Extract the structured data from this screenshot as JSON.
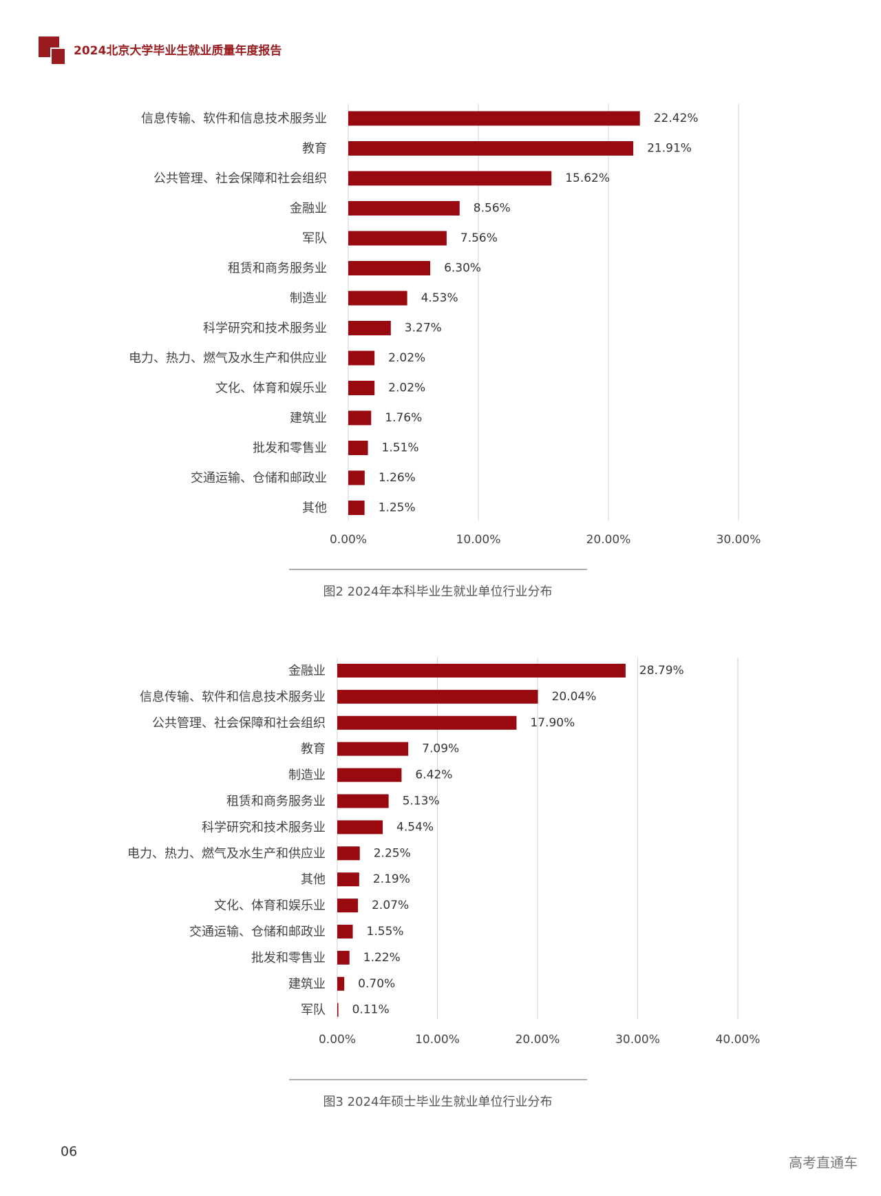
{
  "header": {
    "title": "2024北京大学毕业生就业质量年度报告"
  },
  "page_number": "06",
  "watermark": "高考直通车",
  "chart_data": [
    {
      "type": "bar",
      "orientation": "horizontal",
      "color": "#990a10",
      "grid": true,
      "caption": "图2 2024年本科毕业生就业单位行业分布",
      "categories": [
        "信息传输、软件和信息技术服务业",
        "教育",
        "公共管理、社会保障和社会组织",
        "金融业",
        "军队",
        "租赁和商务服务业",
        "制造业",
        "科学研究和技术服务业",
        "电力、热力、燃气及水生产和供应业",
        "文化、体育和娱乐业",
        "建筑业",
        "批发和零售业",
        "交通运输、仓储和邮政业",
        "其他"
      ],
      "values": [
        22.42,
        21.91,
        15.62,
        8.56,
        7.56,
        6.3,
        4.53,
        3.27,
        2.02,
        2.02,
        1.76,
        1.51,
        1.26,
        1.25
      ],
      "value_labels": [
        "22.42%",
        "21.91%",
        "15.62%",
        "8.56%",
        "7.56%",
        "6.30%",
        "4.53%",
        "3.27%",
        "2.02%",
        "2.02%",
        "1.76%",
        "1.51%",
        "1.26%",
        "1.25%"
      ],
      "xlim": [
        0,
        30
      ],
      "xticks": [
        {
          "value": 0,
          "label": "0.00%"
        },
        {
          "value": 10,
          "label": "10.00%"
        },
        {
          "value": 20,
          "label": "20.00%"
        },
        {
          "value": 30,
          "label": "30.00%"
        }
      ]
    },
    {
      "type": "bar",
      "orientation": "horizontal",
      "color": "#990a10",
      "grid": true,
      "caption": "图3 2024年硕士毕业生就业单位行业分布",
      "categories": [
        "金融业",
        "信息传输、软件和信息技术服务业",
        "公共管理、社会保障和社会组织",
        "教育",
        "制造业",
        "租赁和商务服务业",
        "科学研究和技术服务业",
        "电力、热力、燃气及水生产和供应业",
        "其他",
        "文化、体育和娱乐业",
        "交通运输、仓储和邮政业",
        "批发和零售业",
        "建筑业",
        "军队"
      ],
      "values": [
        28.79,
        20.04,
        17.9,
        7.09,
        6.42,
        5.13,
        4.54,
        2.25,
        2.19,
        2.07,
        1.55,
        1.22,
        0.7,
        0.11
      ],
      "value_labels": [
        "28.79%",
        "20.04%",
        "17.90%",
        "7.09%",
        "6.42%",
        "5.13%",
        "4.54%",
        "2.25%",
        "2.19%",
        "2.07%",
        "1.55%",
        "1.22%",
        "0.70%",
        "0.11%"
      ],
      "xlim": [
        0,
        40
      ],
      "xticks": [
        {
          "value": 0,
          "label": "0.00%"
        },
        {
          "value": 10,
          "label": "10.00%"
        },
        {
          "value": 20,
          "label": "20.00%"
        },
        {
          "value": 30,
          "label": "30.00%"
        },
        {
          "value": 40,
          "label": "40.00%"
        }
      ]
    }
  ]
}
